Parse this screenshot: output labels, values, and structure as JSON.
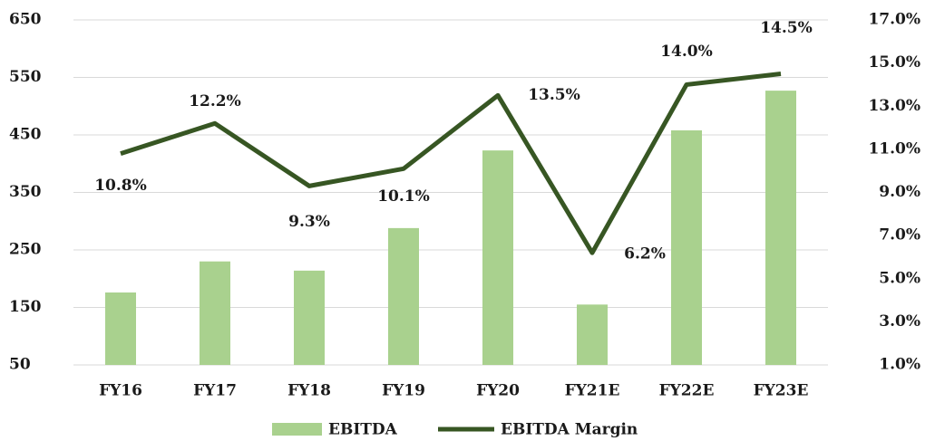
{
  "chart_data": {
    "type": "bar-line",
    "categories": [
      "FY16",
      "FY17",
      "FY18",
      "FY19",
      "FY20",
      "FY21E",
      "FY22E",
      "FY23E"
    ],
    "series": [
      {
        "name": "EBITDA",
        "color": "#a9d18e",
        "type": "bar",
        "values": [
          176,
          230,
          214,
          288,
          423,
          155,
          458,
          527
        ]
      },
      {
        "name": "EBITDA Margin",
        "color": "#375623",
        "type": "line",
        "axis": "y2",
        "values": [
          10.8,
          12.2,
          9.3,
          10.1,
          13.5,
          6.2,
          14.0,
          14.5
        ],
        "value_labels": [
          "10.8%",
          "12.2%",
          "9.3%",
          "10.1%",
          "13.5%",
          "6.2%",
          "14.0%",
          "14.5%"
        ]
      }
    ],
    "ylim": [
      50,
      650
    ],
    "yticks": [
      50,
      150,
      250,
      350,
      450,
      550,
      650
    ],
    "y2lim": [
      1,
      17
    ],
    "y2ticks": [
      {
        "value": 1,
        "label": "1.0%"
      },
      {
        "value": 3,
        "label": "3.0%"
      },
      {
        "value": 5,
        "label": "5.0%"
      },
      {
        "value": 7,
        "label": "7.0%"
      },
      {
        "value": 9,
        "label": "9.0%"
      },
      {
        "value": 11,
        "label": "11.0%"
      },
      {
        "value": 13,
        "label": "13.0%"
      },
      {
        "value": 15,
        "label": "15.0%"
      },
      {
        "value": 17,
        "label": "17.0%"
      }
    ],
    "grid": true,
    "legend": "bottom"
  }
}
